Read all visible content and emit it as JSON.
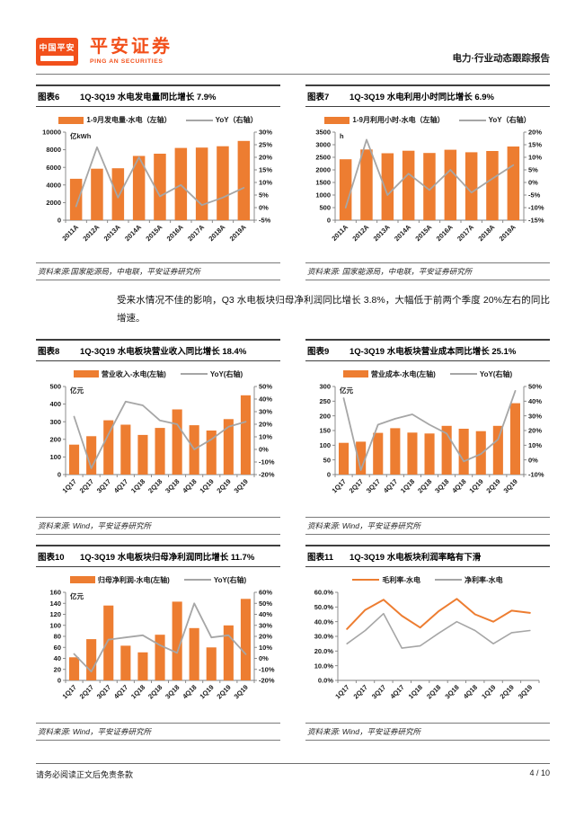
{
  "header": {
    "logo_badge_text": "中国平安",
    "brand_cn": "平安证券",
    "brand_en": "PING AN SECURITIES",
    "report_type": "电力·行业动态跟踪报告"
  },
  "paragraph": "受来水情况不佳的影响，Q3 水电板块归母净利润同比增长 3.8%，大幅低于前两个季度 20%左右的同比增速。",
  "footer": {
    "disclaimer": "请务必阅读正文后免责条款",
    "page": "4 / 10"
  },
  "colors": {
    "brand": "#f2501b",
    "bar_orange": "#ED7D31",
    "line_gray": "#A6A6A6",
    "axis": "#808080"
  },
  "chart_data": [
    {
      "figure_label": "图表6",
      "title": "1Q-3Q19 水电发电量同比增长 7.9%",
      "type": "bar+line",
      "unit": "亿kWh",
      "categories": [
        "2011A",
        "2012A",
        "2013A",
        "2014A",
        "2015A",
        "2016A",
        "2017A",
        "2018A",
        "2019A"
      ],
      "bars": {
        "name": "1-9月发电量-水电（左轴）",
        "values": [
          4700,
          5850,
          5900,
          7300,
          7550,
          8200,
          8250,
          8400,
          9000
        ]
      },
      "line": {
        "name": "YoY（右轴）",
        "values": [
          0.5,
          24,
          4,
          20,
          4.5,
          9,
          1,
          4,
          7.9
        ]
      },
      "left_axis": {
        "min": 0,
        "max": 10000,
        "step": 2000
      },
      "right_axis": {
        "min": -5,
        "max": 30,
        "step": 5,
        "suffix": "%"
      },
      "source": "资料来源:国家能源局，中电联，平安证券研究所"
    },
    {
      "figure_label": "图表7",
      "title": "1Q-3Q19 水电利用小时同比增长 6.9%",
      "type": "bar+line",
      "unit": "h",
      "categories": [
        "2011A",
        "2012A",
        "2013A",
        "2014A",
        "2015A",
        "2016A",
        "2017A",
        "2018A",
        "2019A"
      ],
      "bars": {
        "name": "1-9月利用小时-水电（左轴）",
        "values": [
          2420,
          2810,
          2660,
          2760,
          2670,
          2800,
          2700,
          2750,
          2930
        ]
      },
      "line": {
        "name": "YoY（右轴）",
        "values": [
          -10,
          17,
          -5,
          3.5,
          -3,
          5,
          -4,
          1.5,
          6.9
        ]
      },
      "left_axis": {
        "min": 0,
        "max": 3500,
        "step": 500
      },
      "right_axis": {
        "min": -15,
        "max": 20,
        "step": 5,
        "suffix": "%"
      },
      "source": "资料来源: 国家能源局，中电联，平安证券研究所"
    },
    {
      "figure_label": "图表8",
      "title": "1Q-3Q19 水电板块营业收入同比增长 18.4%",
      "type": "bar+line",
      "unit": "亿元",
      "categories": [
        "1Q17",
        "2Q17",
        "3Q17",
        "4Q17",
        "1Q18",
        "2Q18",
        "3Q18",
        "4Q18",
        "1Q19",
        "2Q19",
        "3Q19"
      ],
      "bars": {
        "name": "营业收入-水电(左轴)",
        "values": [
          170,
          218,
          308,
          283,
          225,
          265,
          370,
          280,
          250,
          315,
          450
        ]
      },
      "line": {
        "name": "YoY(右轴)",
        "values": [
          26,
          -15,
          12,
          38,
          35,
          23,
          20,
          0,
          8,
          18,
          22
        ]
      },
      "left_axis": {
        "min": 0,
        "max": 500,
        "step": 100
      },
      "right_axis": {
        "min": -20,
        "max": 50,
        "step": 10,
        "suffix": "%"
      },
      "source": "资料来源: Wind，平安证券研究所"
    },
    {
      "figure_label": "图表9",
      "title": "1Q-3Q19 水电板块营业成本同比增长 25.1%",
      "type": "bar+line",
      "unit": "亿元",
      "categories": [
        "1Q17",
        "2Q17",
        "3Q17",
        "4Q17",
        "1Q18",
        "2Q18",
        "3Q18",
        "4Q18",
        "1Q19",
        "2Q19",
        "3Q19"
      ],
      "bars": {
        "name": "营业成本-水电(左轴)",
        "values": [
          108,
          112,
          142,
          158,
          143,
          140,
          166,
          156,
          148,
          166,
          243
        ]
      },
      "line": {
        "name": "YoY(右轴)",
        "values": [
          42,
          -7,
          24,
          28,
          31,
          24,
          18,
          -1,
          4,
          14,
          47
        ]
      },
      "left_axis": {
        "min": 0,
        "max": 300,
        "step": 50
      },
      "right_axis": {
        "min": -10,
        "max": 50,
        "step": 10,
        "suffix": "%"
      },
      "source": "资料来源: Wind，平安证券研究所"
    },
    {
      "figure_label": "图表10",
      "title": "1Q-3Q19 水电板块归母净利润同比增长 11.7%",
      "type": "bar+line",
      "unit": "亿元",
      "categories": [
        "1Q17",
        "2Q17",
        "3Q17",
        "4Q17",
        "1Q18",
        "2Q18",
        "3Q18",
        "4Q18",
        "1Q19",
        "2Q19",
        "3Q19"
      ],
      "bars": {
        "name": "归母净利润-水电(左轴)",
        "values": [
          42,
          75,
          136,
          63,
          51,
          83,
          143,
          95,
          60,
          100,
          148
        ]
      },
      "line": {
        "name": "YoY(右轴)",
        "values": [
          4,
          -12,
          17,
          19,
          21,
          12,
          5,
          50,
          19,
          21,
          3.8
        ]
      },
      "left_axis": {
        "min": 0,
        "max": 160,
        "step": 20
      },
      "right_axis": {
        "min": -20,
        "max": 60,
        "step": 10,
        "suffix": "%"
      },
      "source": "资料来源: Wind，平安证券研究所"
    },
    {
      "figure_label": "图表11",
      "title": "1Q-3Q19 水电板块利润率略有下滑",
      "type": "line",
      "categories": [
        "1Q17",
        "2Q17",
        "3Q17",
        "4Q17",
        "1Q18",
        "2Q18",
        "3Q18",
        "4Q18",
        "1Q19",
        "2Q19",
        "3Q19"
      ],
      "lines": [
        {
          "name": "毛利率-水电",
          "color_key": "bar_orange",
          "values": [
            35,
            48,
            55,
            44,
            36,
            47,
            55.5,
            45,
            40,
            47.5,
            46
          ]
        },
        {
          "name": "净利率-水电",
          "color_key": "line_gray",
          "values": [
            25,
            34,
            45.5,
            22,
            23.5,
            32,
            40,
            34,
            25,
            32.5,
            34
          ]
        }
      ],
      "left_axis": {
        "min": 0,
        "max": 60,
        "step": 10,
        "suffix": "%",
        "decimals": 1
      },
      "source": "资料来源: Wind，平安证券研究所"
    }
  ]
}
